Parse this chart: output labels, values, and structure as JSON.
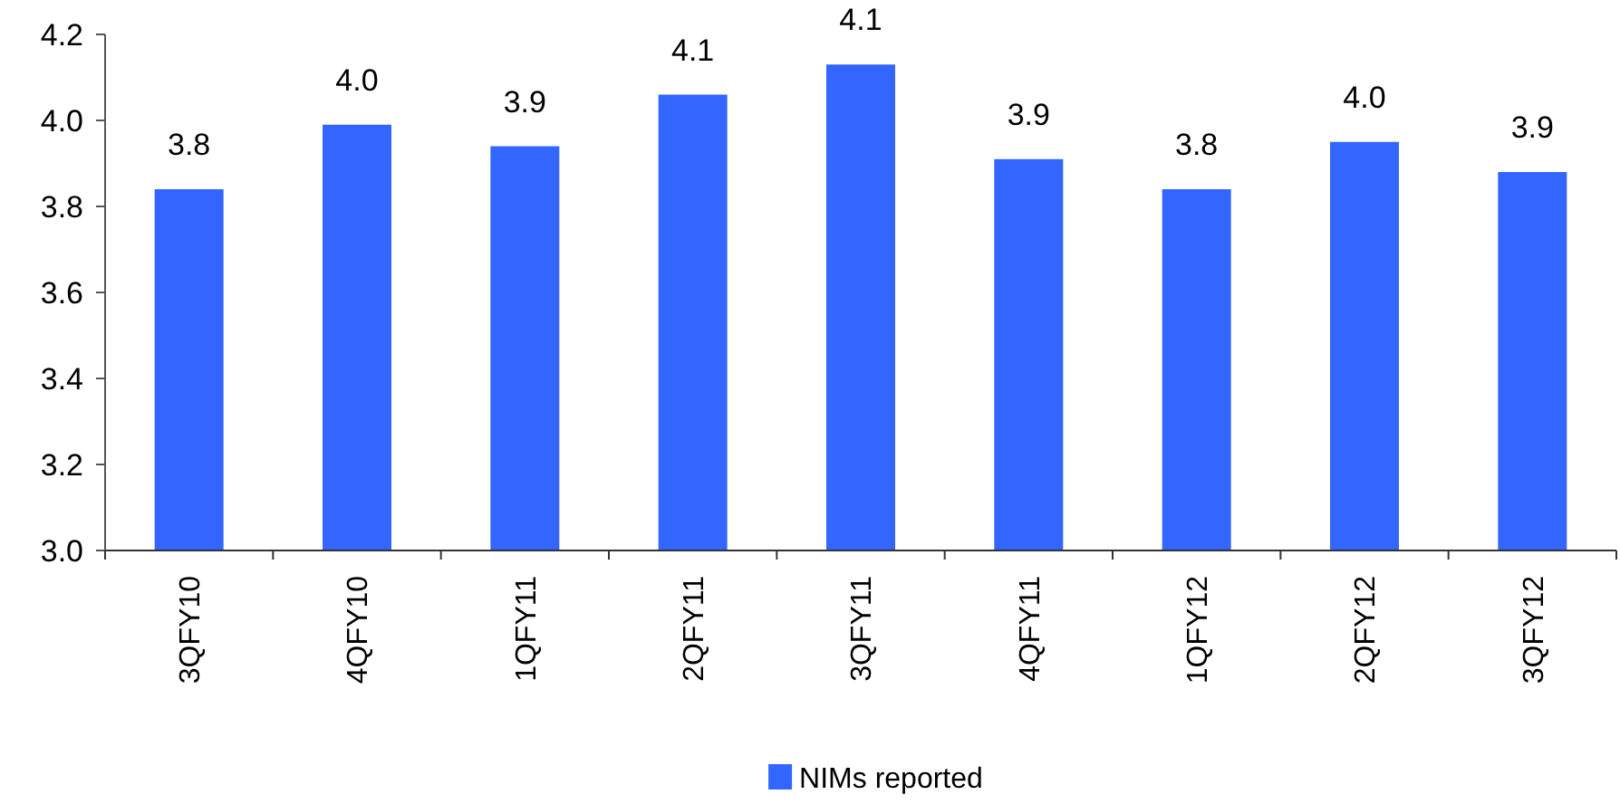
{
  "chart_data": {
    "type": "bar",
    "categories": [
      "3QFY10",
      "4QFY10",
      "1QFY11",
      "2QFY11",
      "3QFY11",
      "4QFY11",
      "1QFY12",
      "2QFY12",
      "3QFY12"
    ],
    "series": [
      {
        "name": "NIMs reported",
        "color": "#3366ff",
        "values": [
          3.84,
          3.99,
          3.94,
          4.06,
          4.13,
          3.91,
          3.84,
          3.95,
          3.88
        ],
        "value_labels": [
          "3.8",
          "4.0",
          "3.9",
          "4.1",
          "4.1",
          "3.9",
          "3.8",
          "4.0",
          "3.9"
        ]
      }
    ],
    "ylim": [
      3.0,
      4.2
    ],
    "yticks": [
      {
        "value": 3.0,
        "label": "3.0"
      },
      3.2,
      3.4,
      3.6,
      3.8,
      {
        "value": 4.0,
        "label": "4.0"
      },
      4.2
    ],
    "grid": false,
    "legend": "bottom"
  }
}
